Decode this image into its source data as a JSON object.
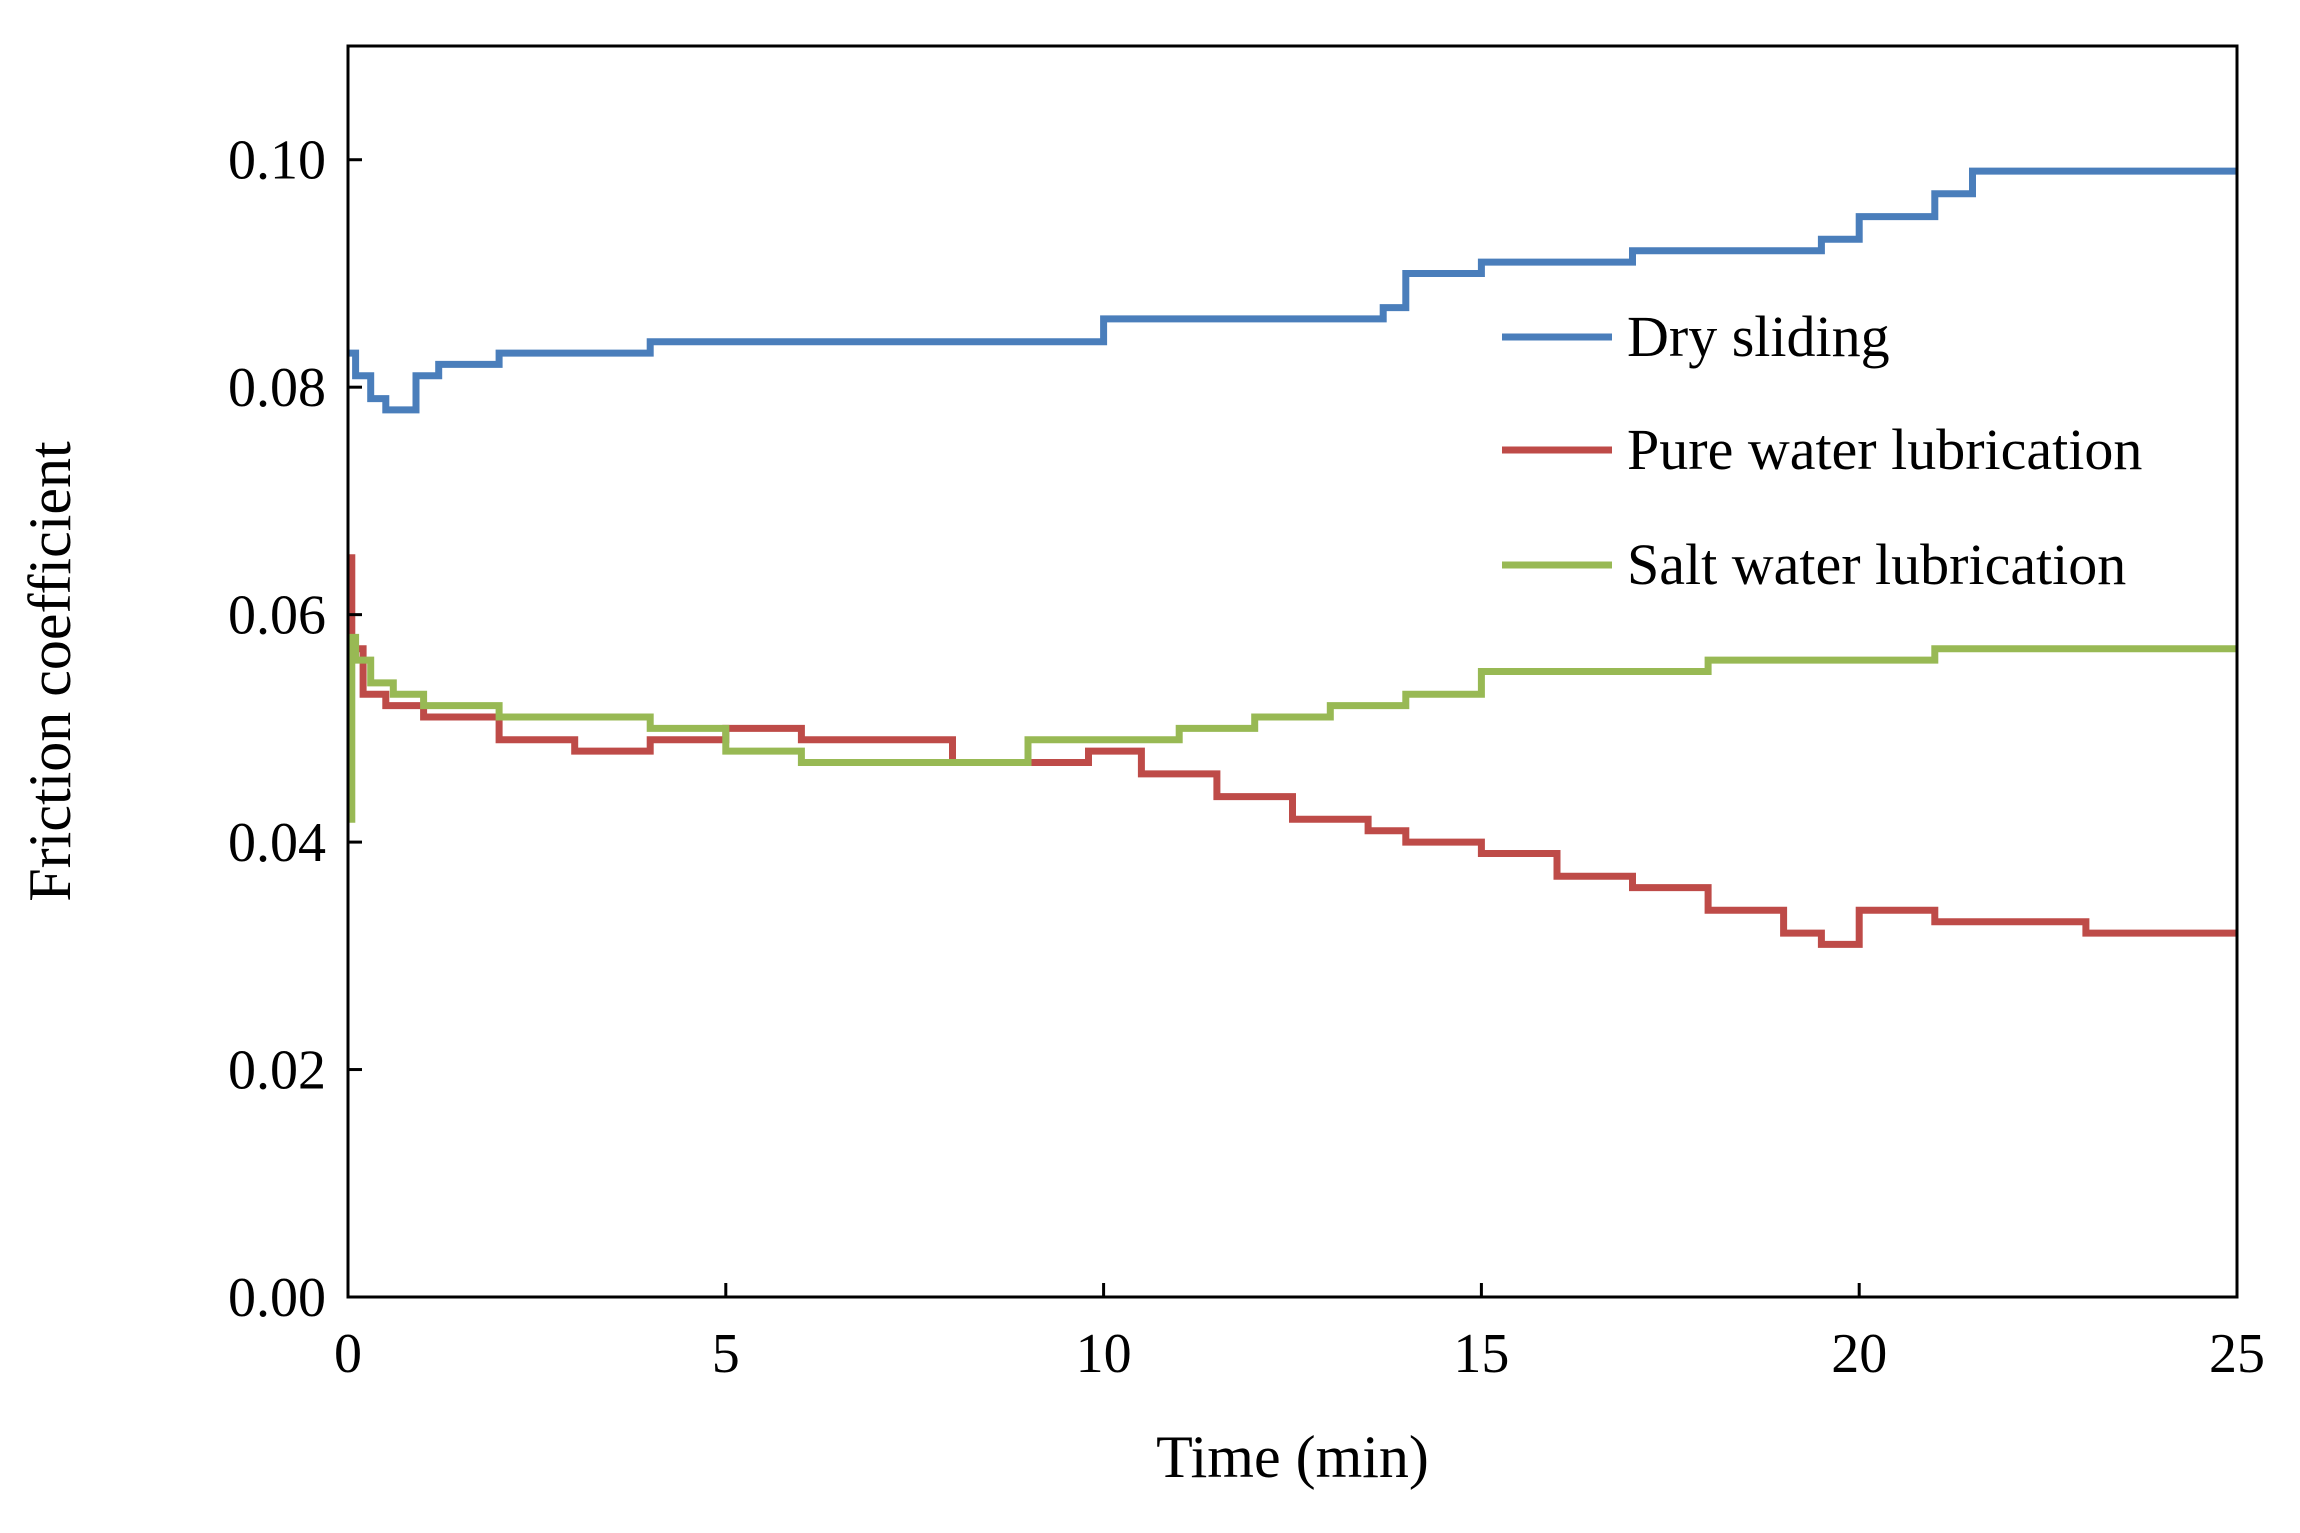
{
  "chart_data": {
    "type": "line",
    "title": "",
    "xlabel": "Time (min)",
    "ylabel": "Friction coefficient",
    "xlim": [
      0,
      25
    ],
    "ylim": [
      0,
      0.11
    ],
    "xticks": [
      0,
      5,
      10,
      15,
      20,
      25
    ],
    "xtick_labels": [
      "0",
      "5",
      "10",
      "15",
      "20",
      "25"
    ],
    "yticks": [
      0,
      0.02,
      0.04,
      0.06,
      0.08,
      0.1
    ],
    "ytick_labels": [
      "0.00",
      "0.02",
      "0.04",
      "0.06",
      "0.08",
      "0.10"
    ],
    "grid": false,
    "legend_position": "right",
    "series": [
      {
        "name": "Dry sliding",
        "color": "#4a7ebb",
        "x": [
          0,
          0.1,
          0.3,
          0.5,
          0.9,
          1.2,
          2.0,
          3.0,
          4.0,
          5.5,
          7.0,
          9.5,
          10.0,
          11.0,
          13.0,
          13.7,
          14.0,
          15.0,
          17.0,
          18.5,
          19.5,
          20.0,
          21.0,
          21.5,
          23.0,
          25.0
        ],
        "y": [
          0.083,
          0.081,
          0.079,
          0.078,
          0.081,
          0.082,
          0.083,
          0.083,
          0.084,
          0.084,
          0.084,
          0.084,
          0.086,
          0.086,
          0.086,
          0.087,
          0.09,
          0.091,
          0.092,
          0.092,
          0.093,
          0.095,
          0.097,
          0.099,
          0.099,
          0.099
        ]
      },
      {
        "name": "Pure water lubrication",
        "color": "#be4b48",
        "x": [
          0,
          0.05,
          0.2,
          0.5,
          1.0,
          2.0,
          3.0,
          4.0,
          5.0,
          6.0,
          7.0,
          8.0,
          9.0,
          9.8,
          10.5,
          11.5,
          12.5,
          13.5,
          14.0,
          15.0,
          16.0,
          17.0,
          18.0,
          19.0,
          19.5,
          20.0,
          21.0,
          22.0,
          23.0,
          25.0
        ],
        "y": [
          0.065,
          0.057,
          0.053,
          0.052,
          0.051,
          0.049,
          0.048,
          0.049,
          0.05,
          0.049,
          0.049,
          0.047,
          0.047,
          0.048,
          0.046,
          0.044,
          0.042,
          0.041,
          0.04,
          0.039,
          0.037,
          0.036,
          0.034,
          0.032,
          0.031,
          0.034,
          0.033,
          0.033,
          0.032,
          0.032
        ]
      },
      {
        "name": "Salt water lubrication",
        "color": "#98b954",
        "x": [
          0,
          0.05,
          0.1,
          0.3,
          0.6,
          1.0,
          2.0,
          3.0,
          4.0,
          5.0,
          6.0,
          7.0,
          8.0,
          9.0,
          10.0,
          11.0,
          12.0,
          13.0,
          14.0,
          15.0,
          16.0,
          17.0,
          18.0,
          19.0,
          20.0,
          21.0,
          22.0,
          23.0,
          25.0
        ],
        "y": [
          0.042,
          0.058,
          0.056,
          0.054,
          0.053,
          0.052,
          0.051,
          0.051,
          0.05,
          0.048,
          0.047,
          0.047,
          0.047,
          0.049,
          0.049,
          0.05,
          0.051,
          0.052,
          0.053,
          0.055,
          0.055,
          0.055,
          0.056,
          0.056,
          0.056,
          0.057,
          0.057,
          0.057,
          0.057
        ]
      }
    ]
  }
}
